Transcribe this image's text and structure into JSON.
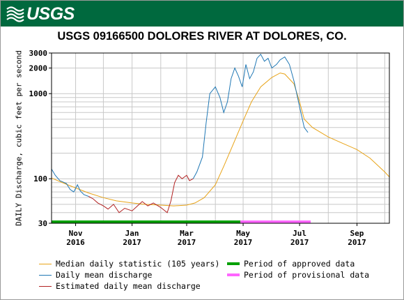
{
  "header": {
    "logo_text": "USGS",
    "brand_color": "#00693e"
  },
  "chart_data": {
    "type": "line",
    "title": "USGS 09166500 DOLORES RIVER AT DOLORES, CO.",
    "ylabel": "DAILY Discharge, cubic feet per second",
    "xlabel": "",
    "y_scale": "log",
    "ylim": [
      30,
      3000
    ],
    "y_ticks": [
      30,
      100,
      1000,
      2000,
      3000
    ],
    "xlim": [
      "2016-10-06",
      "2017-10-06"
    ],
    "x_ticks": [
      {
        "date": "2016-11-01",
        "line1": "Nov",
        "line2": "2016"
      },
      {
        "date": "2017-01-01",
        "line1": "Jan",
        "line2": "2017"
      },
      {
        "date": "2017-03-01",
        "line1": "Mar",
        "line2": "2017"
      },
      {
        "date": "2017-05-01",
        "line1": "May",
        "line2": "2017"
      },
      {
        "date": "2017-07-01",
        "line1": "Jul",
        "line2": "2017"
      },
      {
        "date": "2017-09-01",
        "line1": "Sep",
        "line2": "2017"
      }
    ],
    "grid": true,
    "series": [
      {
        "name": "Median daily statistic (105 years)",
        "color": "#e8a317",
        "points": [
          [
            "2016-10-06",
            102
          ],
          [
            "2016-10-20",
            88
          ],
          [
            "2016-11-01",
            78
          ],
          [
            "2016-11-15",
            68
          ],
          [
            "2016-12-01",
            60
          ],
          [
            "2016-12-15",
            55
          ],
          [
            "2017-01-01",
            52
          ],
          [
            "2017-01-15",
            50
          ],
          [
            "2017-02-01",
            49
          ],
          [
            "2017-02-15",
            48
          ],
          [
            "2017-03-01",
            49
          ],
          [
            "2017-03-10",
            52
          ],
          [
            "2017-03-20",
            60
          ],
          [
            "2017-04-01",
            85
          ],
          [
            "2017-04-10",
            140
          ],
          [
            "2017-04-20",
            250
          ],
          [
            "2017-05-01",
            480
          ],
          [
            "2017-05-10",
            800
          ],
          [
            "2017-05-20",
            1200
          ],
          [
            "2017-06-01",
            1550
          ],
          [
            "2017-06-10",
            1750
          ],
          [
            "2017-06-15",
            1700
          ],
          [
            "2017-06-25",
            1300
          ],
          [
            "2017-07-01",
            800
          ],
          [
            "2017-07-06",
            500
          ],
          [
            "2017-07-15",
            400
          ],
          [
            "2017-08-01",
            310
          ],
          [
            "2017-08-15",
            265
          ],
          [
            "2017-09-01",
            220
          ],
          [
            "2017-09-15",
            175
          ],
          [
            "2017-10-01",
            120
          ],
          [
            "2017-10-06",
            105
          ]
        ]
      },
      {
        "name": "Daily mean discharge",
        "color": "#1f77b4",
        "segments": [
          [
            [
              "2016-10-06",
              130
            ],
            [
              "2016-10-10",
              110
            ],
            [
              "2016-10-15",
              95
            ],
            [
              "2016-10-22",
              88
            ],
            [
              "2016-10-26",
              75
            ],
            [
              "2016-10-30",
              70
            ],
            [
              "2016-11-03",
              85
            ],
            [
              "2016-11-06",
              72
            ],
            [
              "2016-11-10",
              65
            ],
            [
              "2016-11-15",
              62
            ]
          ],
          [
            [
              "2017-03-08",
              100
            ],
            [
              "2017-03-12",
              120
            ],
            [
              "2017-03-18",
              180
            ],
            [
              "2017-03-22",
              450
            ],
            [
              "2017-03-26",
              1000
            ],
            [
              "2017-04-01",
              1200
            ],
            [
              "2017-04-06",
              900
            ],
            [
              "2017-04-10",
              600
            ],
            [
              "2017-04-14",
              800
            ],
            [
              "2017-04-18",
              1500
            ],
            [
              "2017-04-22",
              2000
            ],
            [
              "2017-04-26",
              1600
            ],
            [
              "2017-04-30",
              1200
            ],
            [
              "2017-05-04",
              2200
            ],
            [
              "2017-05-08",
              1500
            ],
            [
              "2017-05-12",
              1800
            ],
            [
              "2017-05-16",
              2600
            ],
            [
              "2017-05-20",
              2900
            ],
            [
              "2017-05-24",
              2400
            ],
            [
              "2017-05-28",
              2600
            ],
            [
              "2017-06-01",
              2000
            ],
            [
              "2017-06-06",
              2200
            ],
            [
              "2017-06-10",
              2500
            ],
            [
              "2017-06-15",
              2700
            ],
            [
              "2017-06-20",
              2200
            ],
            [
              "2017-06-25",
              1400
            ],
            [
              "2017-07-01",
              700
            ],
            [
              "2017-07-06",
              400
            ],
            [
              "2017-07-10",
              350
            ]
          ]
        ]
      },
      {
        "name": "Estimated daily mean discharge",
        "color": "#b22222",
        "points": [
          [
            "2016-11-15",
            62
          ],
          [
            "2016-11-20",
            58
          ],
          [
            "2016-11-25",
            52
          ],
          [
            "2016-12-01",
            48
          ],
          [
            "2016-12-06",
            44
          ],
          [
            "2016-12-12",
            50
          ],
          [
            "2016-12-18",
            40
          ],
          [
            "2016-12-24",
            45
          ],
          [
            "2017-01-01",
            42
          ],
          [
            "2017-01-06",
            47
          ],
          [
            "2017-01-12",
            54
          ],
          [
            "2017-01-18",
            48
          ],
          [
            "2017-01-24",
            52
          ],
          [
            "2017-02-01",
            46
          ],
          [
            "2017-02-08",
            40
          ],
          [
            "2017-02-12",
            55
          ],
          [
            "2017-02-16",
            90
          ],
          [
            "2017-02-20",
            110
          ],
          [
            "2017-02-24",
            100
          ],
          [
            "2017-03-01",
            110
          ],
          [
            "2017-03-04",
            95
          ],
          [
            "2017-03-08",
            100
          ]
        ]
      }
    ],
    "periods": [
      {
        "name": "Period of approved data",
        "color": "#00a000",
        "start": "2016-10-06",
        "end": "2017-04-28"
      },
      {
        "name": "Period of provisional data",
        "color": "#ff66ff",
        "start": "2017-04-28",
        "end": "2017-07-13"
      }
    ],
    "legend": {
      "items": [
        {
          "label": "Median daily statistic (105 years)",
          "color": "#e8a317",
          "style": "thin"
        },
        {
          "label": "Daily mean discharge",
          "color": "#1f77b4",
          "style": "thin"
        },
        {
          "label": "Estimated daily mean discharge",
          "color": "#b22222",
          "style": "thin"
        },
        {
          "label": "Period of approved data",
          "color": "#00a000",
          "style": "thick"
        },
        {
          "label": "Period of provisional data",
          "color": "#ff66ff",
          "style": "thick"
        }
      ]
    }
  }
}
